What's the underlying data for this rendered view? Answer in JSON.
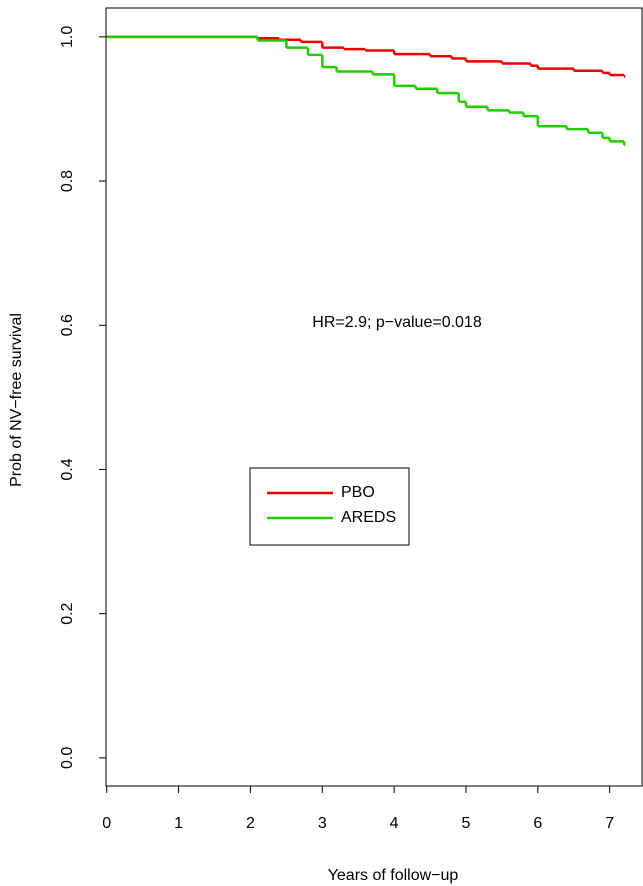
{
  "chart_data": {
    "type": "step",
    "xlabel": "Years of follow−up",
    "ylabel": "Prob of NV−free survival",
    "annotation": "HR=2.9; p−value=0.018",
    "xlim": [
      -0.01,
      7.45
    ],
    "ylim": [
      -0.039,
      1.04
    ],
    "xticks": [
      0,
      1,
      2,
      3,
      4,
      5,
      6,
      7
    ],
    "yticks": [
      {
        "value": 0,
        "label": "0.0"
      },
      0.2,
      0.4,
      0.6,
      0.8,
      {
        "value": 1,
        "label": "1.0"
      }
    ],
    "legend": "center-left",
    "series": [
      {
        "name": "PBO",
        "color": "#ee0000",
        "x": [
          0,
          2.1,
          2.4,
          2.7,
          3.0,
          3.3,
          3.6,
          4.0,
          4.5,
          4.8,
          5.0,
          5.5,
          5.9,
          6.0,
          6.5,
          6.9,
          7.0,
          7.2
        ],
        "values": [
          1.0,
          0.998,
          0.996,
          0.993,
          0.985,
          0.983,
          0.981,
          0.976,
          0.973,
          0.97,
          0.966,
          0.963,
          0.96,
          0.956,
          0.953,
          0.95,
          0.947,
          0.945
        ]
      },
      {
        "name": "AREDS",
        "color": "#22cc00",
        "x": [
          0,
          2.1,
          2.5,
          2.8,
          3.0,
          3.2,
          3.7,
          4.0,
          4.3,
          4.6,
          4.9,
          5.0,
          5.3,
          5.6,
          5.8,
          6.0,
          6.4,
          6.7,
          6.9,
          7.0,
          7.2
        ],
        "values": [
          1.0,
          0.995,
          0.985,
          0.975,
          0.958,
          0.952,
          0.948,
          0.932,
          0.928,
          0.922,
          0.91,
          0.903,
          0.898,
          0.895,
          0.89,
          0.876,
          0.872,
          0.867,
          0.86,
          0.855,
          0.85
        ]
      }
    ]
  }
}
